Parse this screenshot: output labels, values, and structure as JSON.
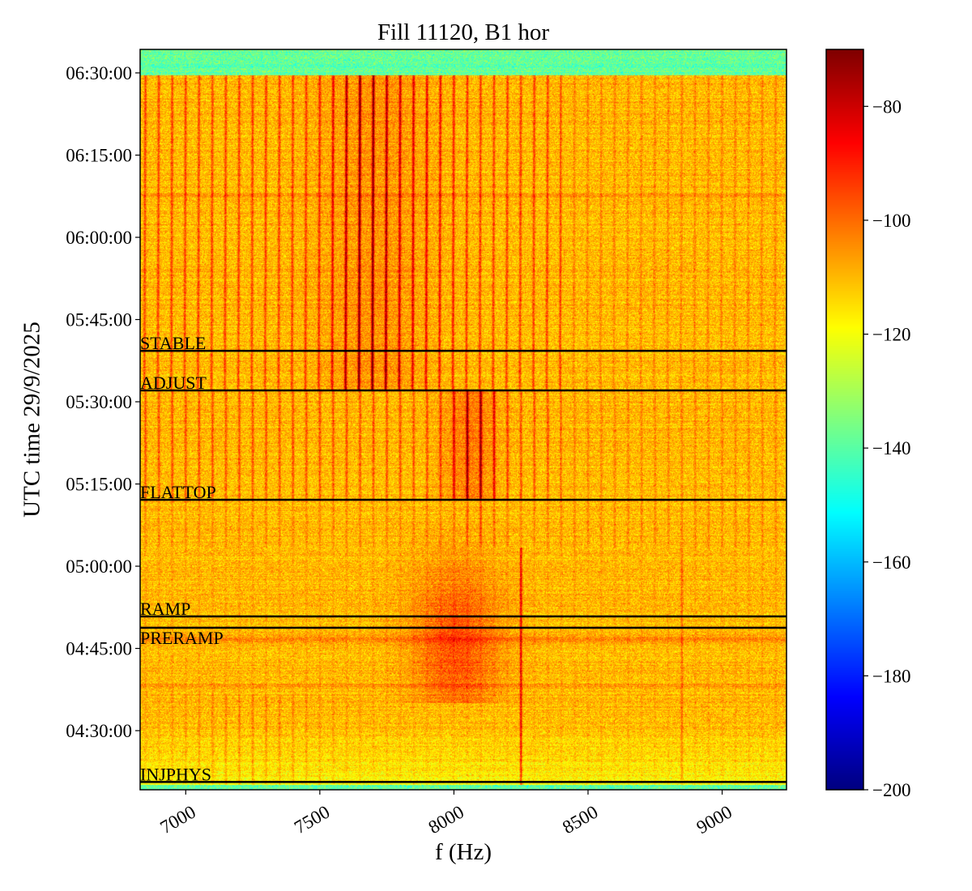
{
  "chart_data": {
    "type": "heatmap",
    "title": "Fill 11120, B1 hor",
    "xlabel": "f (Hz)",
    "ylabel": "UTC time 29/9/2025",
    "xlim": [
      6830,
      9240
    ],
    "ylim": [
      "04:19:13",
      "06:34:17"
    ],
    "xticks": [
      7000,
      7500,
      8000,
      8500,
      9000
    ],
    "yticks": [
      "04:30:00",
      "04:45:00",
      "05:00:00",
      "05:15:00",
      "05:30:00",
      "05:45:00",
      "06:00:00",
      "06:15:00",
      "06:30:00"
    ],
    "colorbar": {
      "range": [
        -200,
        -70
      ],
      "ticks": [
        -80,
        -100,
        -120,
        -140,
        -160,
        -180,
        -200
      ],
      "colormap": "jet"
    },
    "harmonic_spacing_hz": 50,
    "data_start": "04:20:10",
    "data_end": "06:29:30",
    "annotations": [
      {
        "label": "STABLE",
        "time": "05:39:18"
      },
      {
        "label": "ADJUST",
        "time": "05:32:04"
      },
      {
        "label": "FLATTOP",
        "time": "05:12:07"
      },
      {
        "label": "RAMP",
        "time": "04:50:50"
      },
      {
        "label": "PRERAMP",
        "time": "04:48:46"
      },
      {
        "label": "INJPHYS",
        "time": "04:20:38"
      }
    ],
    "annotation_color": "#000000"
  }
}
